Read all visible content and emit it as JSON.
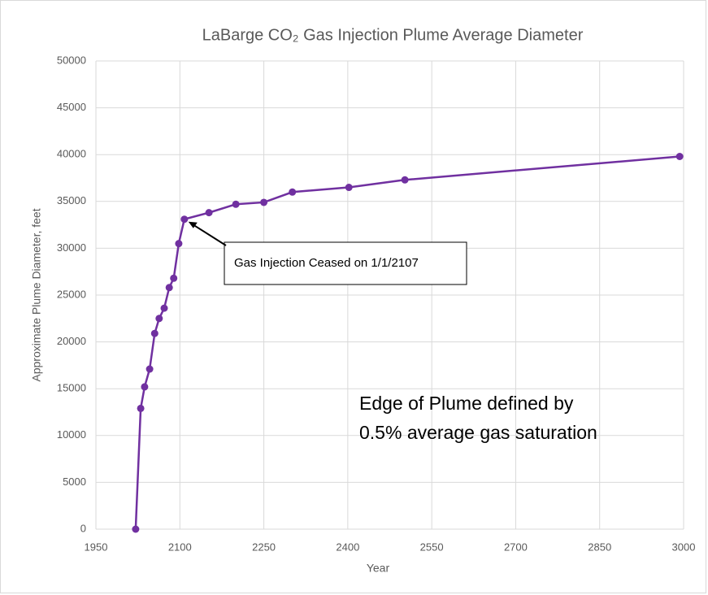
{
  "chart_data": {
    "type": "line",
    "title": "LaBarge CO₂ Gas Injection Plume Average Diameter",
    "x_label": "Year",
    "y_label": "Approximate Plume Diameter, feet",
    "x": [
      2021,
      2030,
      2037,
      2046,
      2055,
      2063,
      2072,
      2081,
      2089,
      2098,
      2108,
      2152,
      2200,
      2250,
      2301,
      2402,
      2502,
      2993
    ],
    "series": [
      {
        "name": "Plume Diameter",
        "color": "#7030a0",
        "values": [
          0,
          12900,
          15200,
          17100,
          20900,
          22500,
          23600,
          25800,
          26800,
          30500,
          33100,
          33800,
          34700,
          34900,
          36000,
          36500,
          37300,
          39800
        ]
      }
    ],
    "xlim": [
      1950,
      3000
    ],
    "xticks": [
      1950,
      2100,
      2250,
      2400,
      2550,
      2700,
      2850,
      3000
    ],
    "ylim": [
      0,
      50000
    ],
    "yticks": [
      0,
      5000,
      10000,
      15000,
      20000,
      25000,
      30000,
      35000,
      40000,
      45000,
      50000
    ],
    "grid": true,
    "annotations": [
      {
        "text": "Gas Injection Ceased on 1/1/2107",
        "x": 2108,
        "y": 33100
      }
    ],
    "note": [
      "Edge of Plume defined by",
      "0.5% average gas saturation"
    ]
  }
}
